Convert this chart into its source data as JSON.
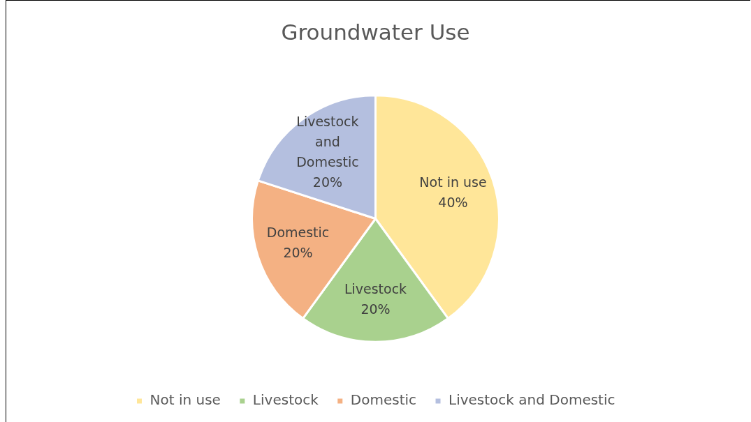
{
  "chart_data": {
    "type": "pie",
    "title": "Groundwater Use",
    "categories": [
      "Not in use",
      "Livestock",
      "Domestic",
      "Livestock and Domestic"
    ],
    "values": [
      40,
      20,
      20,
      20
    ],
    "colors": [
      "#ffe699",
      "#a9d18e",
      "#f4b183",
      "#b4bfdf"
    ],
    "value_labels": [
      "40%",
      "20%",
      "20%",
      "20%"
    ],
    "legend": "bottom"
  }
}
